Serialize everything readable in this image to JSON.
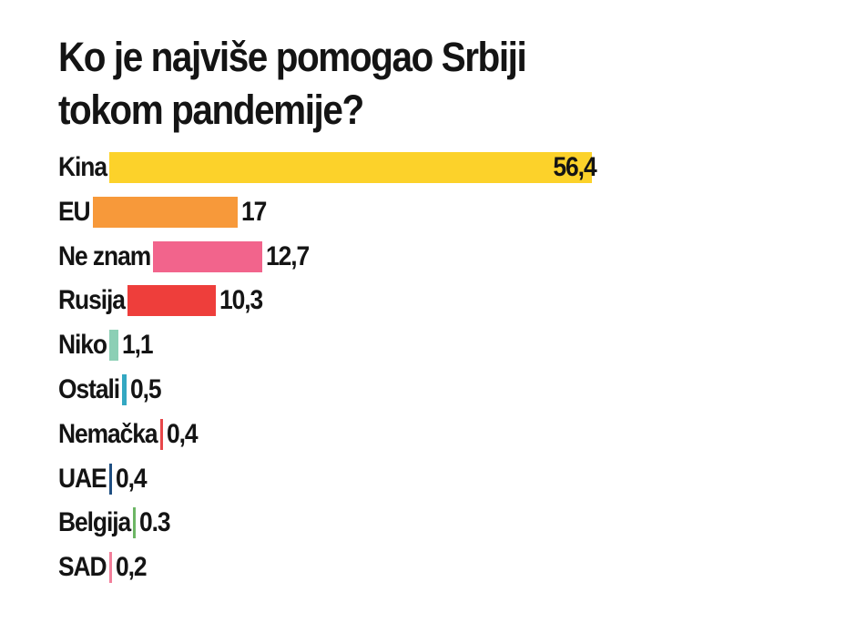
{
  "chart_data": {
    "type": "bar",
    "orientation": "horizontal",
    "title_lines": [
      "Ko je najviše pomogao Srbiji",
      "tokom pandemije?"
    ],
    "categories": [
      "Kina",
      "EU",
      "Ne znam",
      "Rusija",
      "Niko",
      "Ostali",
      "Nemačka",
      "UAE",
      "Belgija",
      "SAD"
    ],
    "values": [
      56.4,
      17,
      12.7,
      10.3,
      1.1,
      0.5,
      0.4,
      0.4,
      0.3,
      0.2
    ],
    "value_labels": [
      "56,4",
      "17",
      "12,7",
      "10,3",
      "1,1",
      "0,5",
      "0,4",
      "0,4",
      "0.3",
      "0,2"
    ],
    "colors": [
      "#fcd22a",
      "#f7993a",
      "#f2648c",
      "#ee3e3b",
      "#8ccfb5",
      "#34a8c2",
      "#e8474a",
      "#1f4f82",
      "#6db665",
      "#f27f9b"
    ],
    "grid": false,
    "legend": "none"
  }
}
